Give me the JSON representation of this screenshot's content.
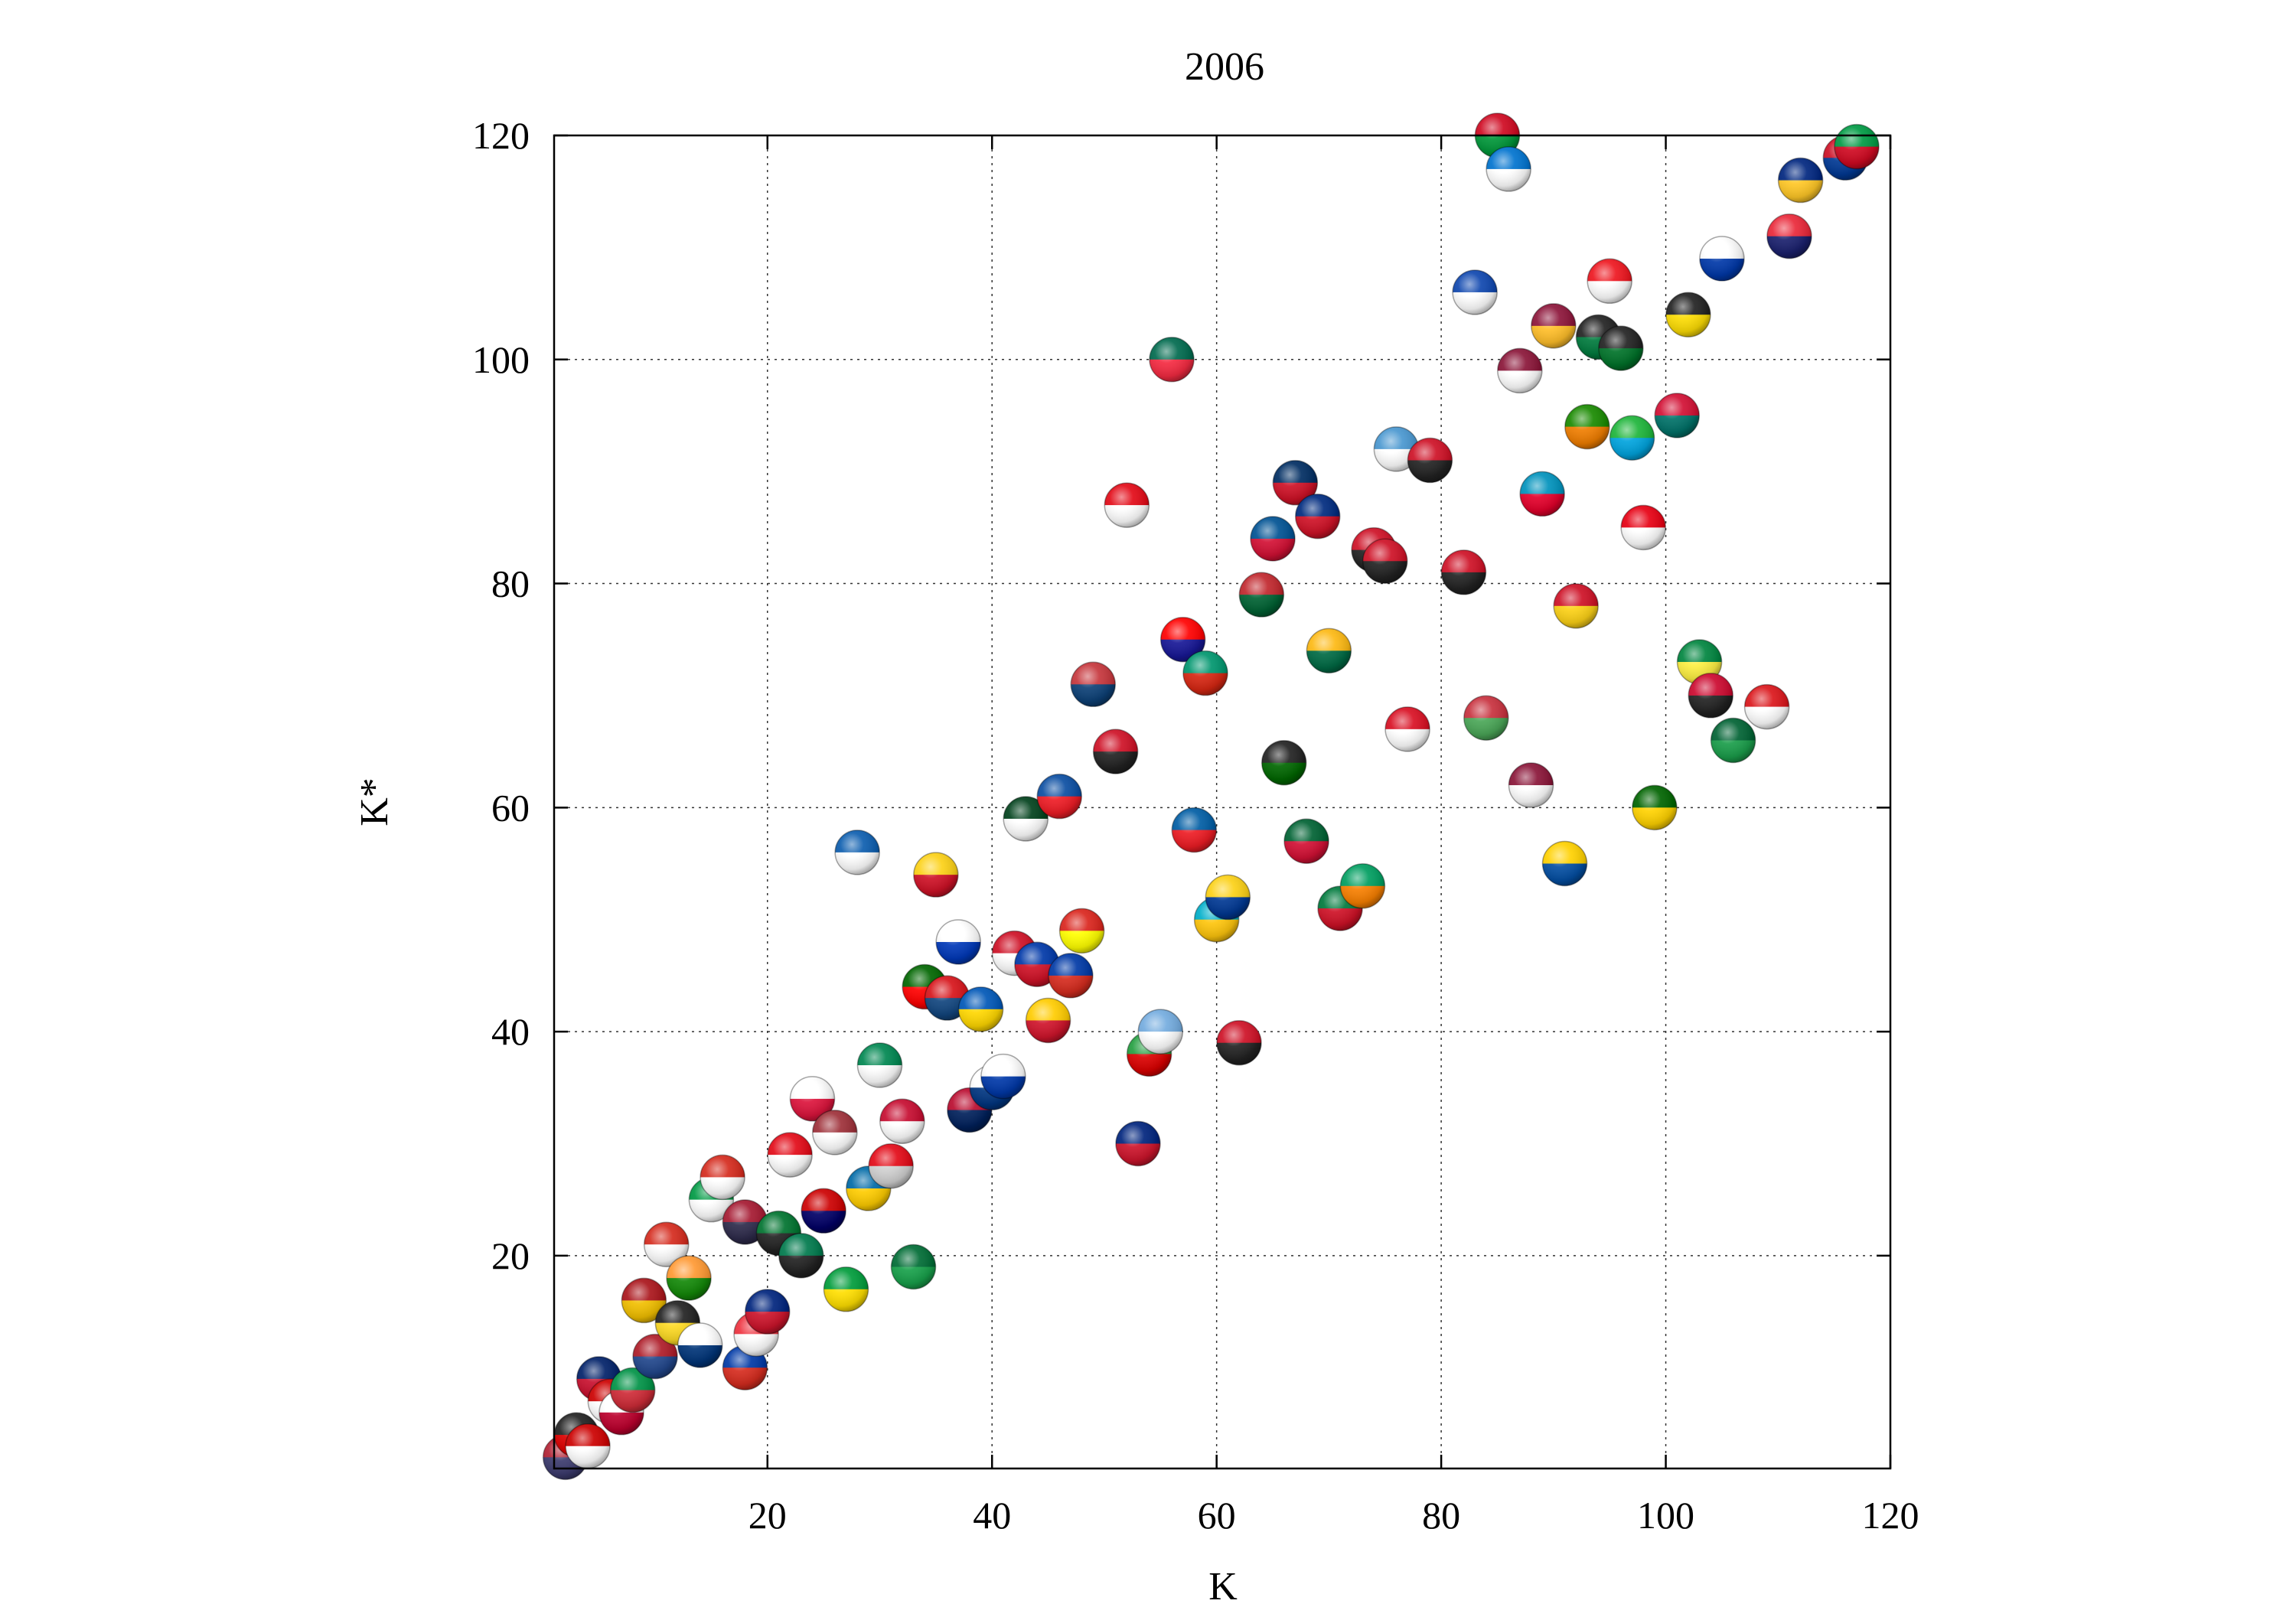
{
  "chart_data": {
    "type": "scatter",
    "title": "2006",
    "xlabel": "K",
    "ylabel": "K*",
    "xlim": [
      1,
      120
    ],
    "ylim": [
      1,
      120
    ],
    "xticks": [
      20,
      40,
      60,
      80,
      100,
      120
    ],
    "yticks": [
      20,
      40,
      60,
      80,
      100,
      120
    ],
    "grid": true,
    "marker": "country flag spheres",
    "points": [
      {
        "x": 2,
        "y": 2,
        "c1": "#b22234",
        "c2": "#3c3b6e"
      },
      {
        "x": 3,
        "y": 4,
        "c1": "#222222",
        "c2": "#dd0000"
      },
      {
        "x": 4,
        "y": 3,
        "c1": "#cc0000",
        "c2": "#ffffff"
      },
      {
        "x": 5,
        "y": 9,
        "c1": "#012169",
        "c2": "#c8102e"
      },
      {
        "x": 6,
        "y": 7,
        "c1": "#cc0000",
        "c2": "#ffffff"
      },
      {
        "x": 7,
        "y": 6,
        "c1": "#ffffff",
        "c2": "#bc002d"
      },
      {
        "x": 8,
        "y": 8,
        "c1": "#009246",
        "c2": "#ce2b37"
      },
      {
        "x": 10,
        "y": 11,
        "c1": "#ae1c28",
        "c2": "#21468b"
      },
      {
        "x": 9,
        "y": 16,
        "c1": "#aa151b",
        "c2": "#f1bf00"
      },
      {
        "x": 11,
        "y": 21,
        "c1": "#d52b1e",
        "c2": "#ffffff"
      },
      {
        "x": 12,
        "y": 14,
        "c1": "#222222",
        "c2": "#fdda24"
      },
      {
        "x": 13,
        "y": 18,
        "c1": "#ff9933",
        "c2": "#138808"
      },
      {
        "x": 14,
        "y": 12,
        "c1": "#ffffff",
        "c2": "#003478"
      },
      {
        "x": 15,
        "y": 25,
        "c1": "#009a44",
        "c2": "#ffffff"
      },
      {
        "x": 16,
        "y": 27,
        "c1": "#d52b1e",
        "c2": "#ffffff"
      },
      {
        "x": 18,
        "y": 23,
        "c1": "#a51931",
        "c2": "#2d2a4a"
      },
      {
        "x": 18,
        "y": 10,
        "c1": "#0039a6",
        "c2": "#d52b1e"
      },
      {
        "x": 19,
        "y": 13,
        "c1": "#ef3340",
        "c2": "#ffffff"
      },
      {
        "x": 20,
        "y": 15,
        "c1": "#00247d",
        "c2": "#cc142b"
      },
      {
        "x": 21,
        "y": 22,
        "c1": "#00732f",
        "c2": "#222222"
      },
      {
        "x": 22,
        "y": 29,
        "c1": "#e30a17",
        "c2": "#ffffff"
      },
      {
        "x": 23,
        "y": 20,
        "c1": "#007a4d",
        "c2": "#222222"
      },
      {
        "x": 24,
        "y": 34,
        "c1": "#ffffff",
        "c2": "#dc143c"
      },
      {
        "x": 25,
        "y": 24,
        "c1": "#cc0001",
        "c2": "#010066"
      },
      {
        "x": 26,
        "y": 31,
        "c1": "#9e3039",
        "c2": "#ffffff"
      },
      {
        "x": 27,
        "y": 17,
        "c1": "#009c3b",
        "c2": "#ffdf00"
      },
      {
        "x": 28,
        "y": 56,
        "c1": "#0d5eaf",
        "c2": "#ffffff"
      },
      {
        "x": 29,
        "y": 26,
        "c1": "#006aa7",
        "c2": "#fecc00"
      },
      {
        "x": 30,
        "y": 37,
        "c1": "#008751",
        "c2": "#ffffff"
      },
      {
        "x": 31,
        "y": 28,
        "c1": "#e30a17",
        "c2": "#d0d0d0"
      },
      {
        "x": 32,
        "y": 32,
        "c1": "#c60c30",
        "c2": "#ffffff"
      },
      {
        "x": 33,
        "y": 19,
        "c1": "#006c35",
        "c2": "#17a04a"
      },
      {
        "x": 34,
        "y": 44,
        "c1": "#006600",
        "c2": "#ff0000"
      },
      {
        "x": 35,
        "y": 54,
        "c1": "#fcd116",
        "c2": "#ce1126"
      },
      {
        "x": 36,
        "y": 43,
        "c1": "#d7141a",
        "c2": "#11457e"
      },
      {
        "x": 37,
        "y": 48,
        "c1": "#ffffff",
        "c2": "#0038b8"
      },
      {
        "x": 38,
        "y": 33,
        "c1": "#ba0c2f",
        "c2": "#00205b"
      },
      {
        "x": 39,
        "y": 42,
        "c1": "#0057b7",
        "c2": "#ffd700"
      },
      {
        "x": 40,
        "y": 35,
        "c1": "#ffffff",
        "c2": "#003580"
      },
      {
        "x": 41,
        "y": 36,
        "c1": "#ffffff",
        "c2": "#0038a8"
      },
      {
        "x": 42,
        "y": 47,
        "c1": "#ce1126",
        "c2": "#ffffff"
      },
      {
        "x": 43,
        "y": 59,
        "c1": "#01411c",
        "c2": "#ffffff"
      },
      {
        "x": 44,
        "y": 46,
        "c1": "#0038a8",
        "c2": "#ce1126"
      },
      {
        "x": 45,
        "y": 41,
        "c1": "#ffcc00",
        "c2": "#cf142b"
      },
      {
        "x": 46,
        "y": 61,
        "c1": "#0b4ea2",
        "c2": "#ee1c25"
      },
      {
        "x": 47,
        "y": 45,
        "c1": "#0039a6",
        "c2": "#d52b1e"
      },
      {
        "x": 48,
        "y": 49,
        "c1": "#da251d",
        "c2": "#ffff00"
      },
      {
        "x": 49,
        "y": 71,
        "c1": "#c6363c",
        "c2": "#0c4076"
      },
      {
        "x": 51,
        "y": 65,
        "c1": "#ce1126",
        "c2": "#222222"
      },
      {
        "x": 52,
        "y": 87,
        "c1": "#e30a17",
        "c2": "#ffffff"
      },
      {
        "x": 53,
        "y": 30,
        "c1": "#00247d",
        "c2": "#cc142b"
      },
      {
        "x": 54,
        "y": 38,
        "c1": "#239f40",
        "c2": "#da0000"
      },
      {
        "x": 55,
        "y": 40,
        "c1": "#74acdf",
        "c2": "#ffffff"
      },
      {
        "x": 56,
        "y": 100,
        "c1": "#006a4e",
        "c2": "#f42a41"
      },
      {
        "x": 57,
        "y": 75,
        "c1": "#ff0000",
        "c2": "#171796"
      },
      {
        "x": 58,
        "y": 58,
        "c1": "#005da4",
        "c2": "#ed1c24"
      },
      {
        "x": 59,
        "y": 72,
        "c1": "#00966e",
        "c2": "#d62612"
      },
      {
        "x": 60,
        "y": 50,
        "c1": "#00afca",
        "c2": "#fec50c"
      },
      {
        "x": 61,
        "y": 52,
        "c1": "#fcd116",
        "c2": "#003893"
      },
      {
        "x": 62,
        "y": 39,
        "c1": "#ce1126",
        "c2": "#222222"
      },
      {
        "x": 64,
        "y": 79,
        "c1": "#c1272d",
        "c2": "#006233"
      },
      {
        "x": 65,
        "y": 84,
        "c1": "#005293",
        "c2": "#d21034"
      },
      {
        "x": 66,
        "y": 64,
        "c1": "#222222",
        "c2": "#006600"
      },
      {
        "x": 67,
        "y": 89,
        "c1": "#002d62",
        "c2": "#ce1126"
      },
      {
        "x": 68,
        "y": 57,
        "c1": "#006233",
        "c2": "#d21034"
      },
      {
        "x": 69,
        "y": 86,
        "c1": "#002b7f",
        "c2": "#ce1126"
      },
      {
        "x": 70,
        "y": 74,
        "c1": "#fdb913",
        "c2": "#006a44"
      },
      {
        "x": 71,
        "y": 51,
        "c1": "#007a3d",
        "c2": "#ce1126"
      },
      {
        "x": 73,
        "y": 53,
        "c1": "#009e60",
        "c2": "#f77f00"
      },
      {
        "x": 74,
        "y": 83,
        "c1": "#ce1126",
        "c2": "#222222"
      },
      {
        "x": 75,
        "y": 82,
        "c1": "#ce1126",
        "c2": "#222222"
      },
      {
        "x": 76,
        "y": 92,
        "c1": "#4997d0",
        "c2": "#ffffff"
      },
      {
        "x": 77,
        "y": 67,
        "c1": "#d91023",
        "c2": "#ffffff"
      },
      {
        "x": 79,
        "y": 91,
        "c1": "#ce1126",
        "c2": "#222222"
      },
      {
        "x": 82,
        "y": 81,
        "c1": "#ce1126",
        "c2": "#222222"
      },
      {
        "x": 83,
        "y": 106,
        "c1": "#0f47af",
        "c2": "#ffffff"
      },
      {
        "x": 84,
        "y": 68,
        "c1": "#c8313e",
        "c2": "#4aa657"
      },
      {
        "x": 85,
        "y": 120,
        "c1": "#cf0921",
        "c2": "#009639"
      },
      {
        "x": 86,
        "y": 117,
        "c1": "#0073cf",
        "c2": "#ffffff"
      },
      {
        "x": 87,
        "y": 99,
        "c1": "#8a1538",
        "c2": "#ffffff"
      },
      {
        "x": 88,
        "y": 62,
        "c1": "#8a1538",
        "c2": "#ffffff"
      },
      {
        "x": 89,
        "y": 88,
        "c1": "#0092bc",
        "c2": "#e4002b"
      },
      {
        "x": 90,
        "y": 103,
        "c1": "#8d153a",
        "c2": "#ffbe29"
      },
      {
        "x": 91,
        "y": 55,
        "c1": "#ffd100",
        "c2": "#034ea2"
      },
      {
        "x": 92,
        "y": 78,
        "c1": "#ce1126",
        "c2": "#fcd116"
      },
      {
        "x": 93,
        "y": 94,
        "c1": "#198a00",
        "c2": "#ef7d00"
      },
      {
        "x": 94,
        "y": 102,
        "c1": "#222222",
        "c2": "#007a3d"
      },
      {
        "x": 95,
        "y": 107,
        "c1": "#ee161f",
        "c2": "#ffffff"
      },
      {
        "x": 96,
        "y": 101,
        "c1": "#222222",
        "c2": "#007229"
      },
      {
        "x": 97,
        "y": 93,
        "c1": "#1eb53a",
        "c2": "#00a3dd"
      },
      {
        "x": 98,
        "y": 85,
        "c1": "#e70013",
        "c2": "#ffffff"
      },
      {
        "x": 99,
        "y": 60,
        "c1": "#006400",
        "c2": "#ffd200"
      },
      {
        "x": 101,
        "y": 95,
        "c1": "#d21034",
        "c2": "#007168"
      },
      {
        "x": 102,
        "y": 104,
        "c1": "#222222",
        "c2": "#fcdc04"
      },
      {
        "x": 103,
        "y": 73,
        "c1": "#00853f",
        "c2": "#fdef42"
      },
      {
        "x": 104,
        "y": 70,
        "c1": "#cc092f",
        "c2": "#222222"
      },
      {
        "x": 105,
        "y": 109,
        "c1": "#ffffff",
        "c2": "#0038a8"
      },
      {
        "x": 106,
        "y": 66,
        "c1": "#006233",
        "c2": "#1a9d4a"
      },
      {
        "x": 109,
        "y": 69,
        "c1": "#db161b",
        "c2": "#ffffff"
      },
      {
        "x": 111,
        "y": 111,
        "c1": "#ea2839",
        "c2": "#1a206d"
      },
      {
        "x": 112,
        "y": 116,
        "c1": "#00267f",
        "c2": "#ffc726"
      },
      {
        "x": 116,
        "y": 118,
        "c1": "#ce1126",
        "c2": "#003893"
      },
      {
        "x": 117,
        "y": 119,
        "c1": "#009a44",
        "c2": "#cf0921"
      }
    ]
  }
}
